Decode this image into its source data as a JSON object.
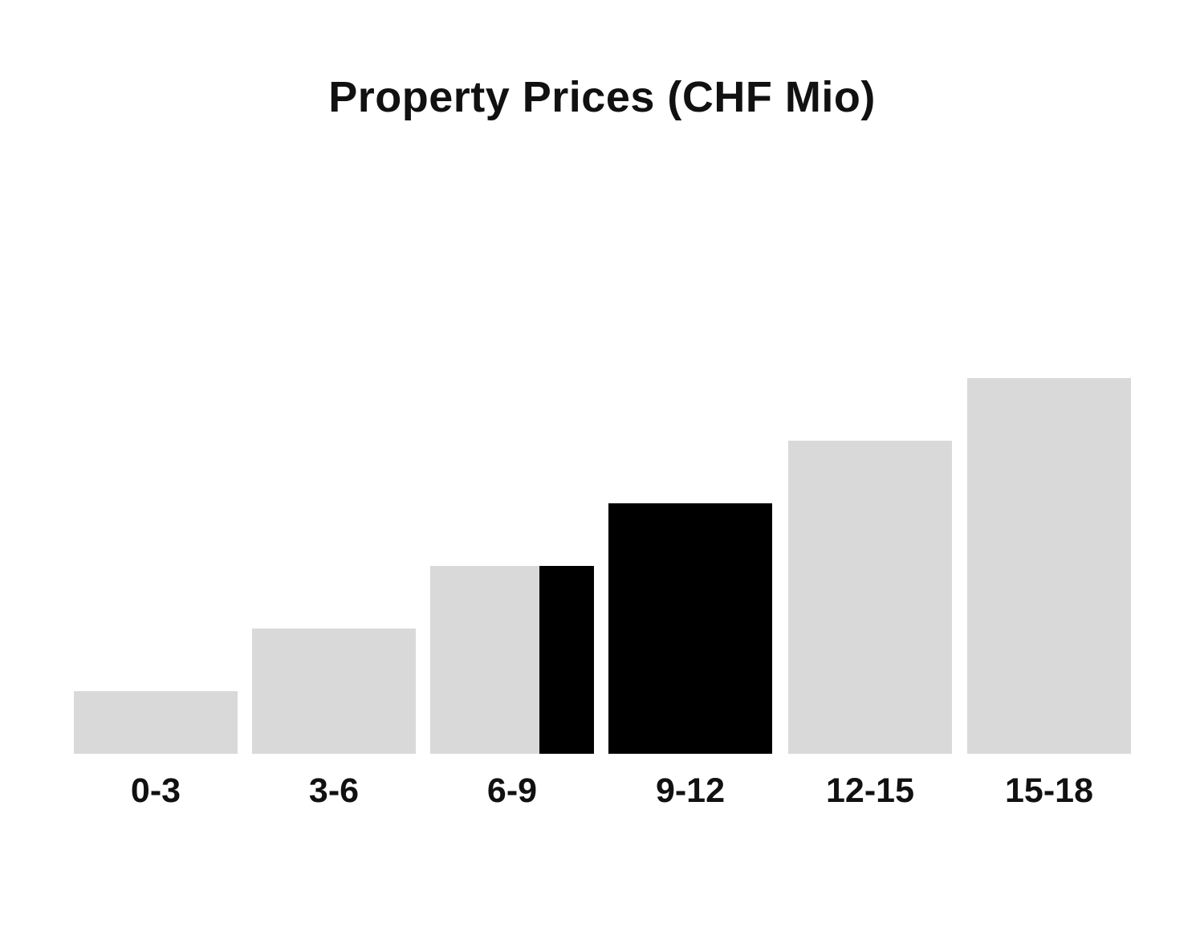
{
  "chart_data": {
    "type": "bar",
    "title": "Property Prices (CHF Mio)",
    "categories": [
      "0-3",
      "3-6",
      "6-9",
      "9-12",
      "12-15",
      "15-18"
    ],
    "values": [
      1,
      2,
      3,
      4,
      5,
      6
    ],
    "value_note": "relative bar heights (staircase 1:2:3:4:5:6); no y-axis or value labels shown",
    "bar_colors": [
      "#d9d9d9",
      "#d9d9d9",
      "#d9d9d9",
      "#000000",
      "#d9d9d9",
      "#d9d9d9"
    ],
    "default_bar_color": "#d9d9d9",
    "highlight": {
      "color": "#000000",
      "full_category": "9-12",
      "partial_category": "6-9",
      "partial_fraction_right": 0.33,
      "description": "Entire 9-12 bar and the right third of the 6-9 bar are filled black"
    },
    "xlabel": "",
    "ylabel": "",
    "grid": false,
    "axes_visible": false,
    "legend": null,
    "text_color": "#111111",
    "background_color": "#ffffff"
  }
}
